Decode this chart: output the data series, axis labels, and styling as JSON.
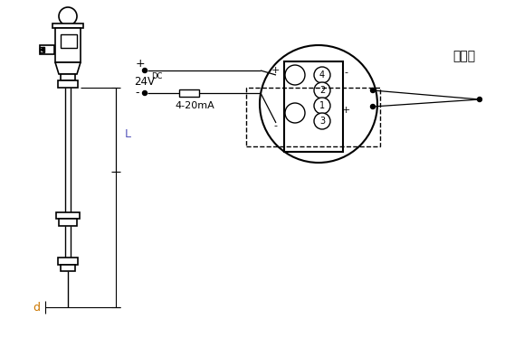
{
  "bg_color": "#ffffff",
  "line_color": "#000000",
  "label_L_color": "#5555bb",
  "label_d_color": "#cc7700",
  "hotcouple_label": "热电偶",
  "power_label_main": "24V",
  "power_label_sub": "DC",
  "signal_label": "4-20mA",
  "plus_label": "+",
  "minus_label": "-"
}
